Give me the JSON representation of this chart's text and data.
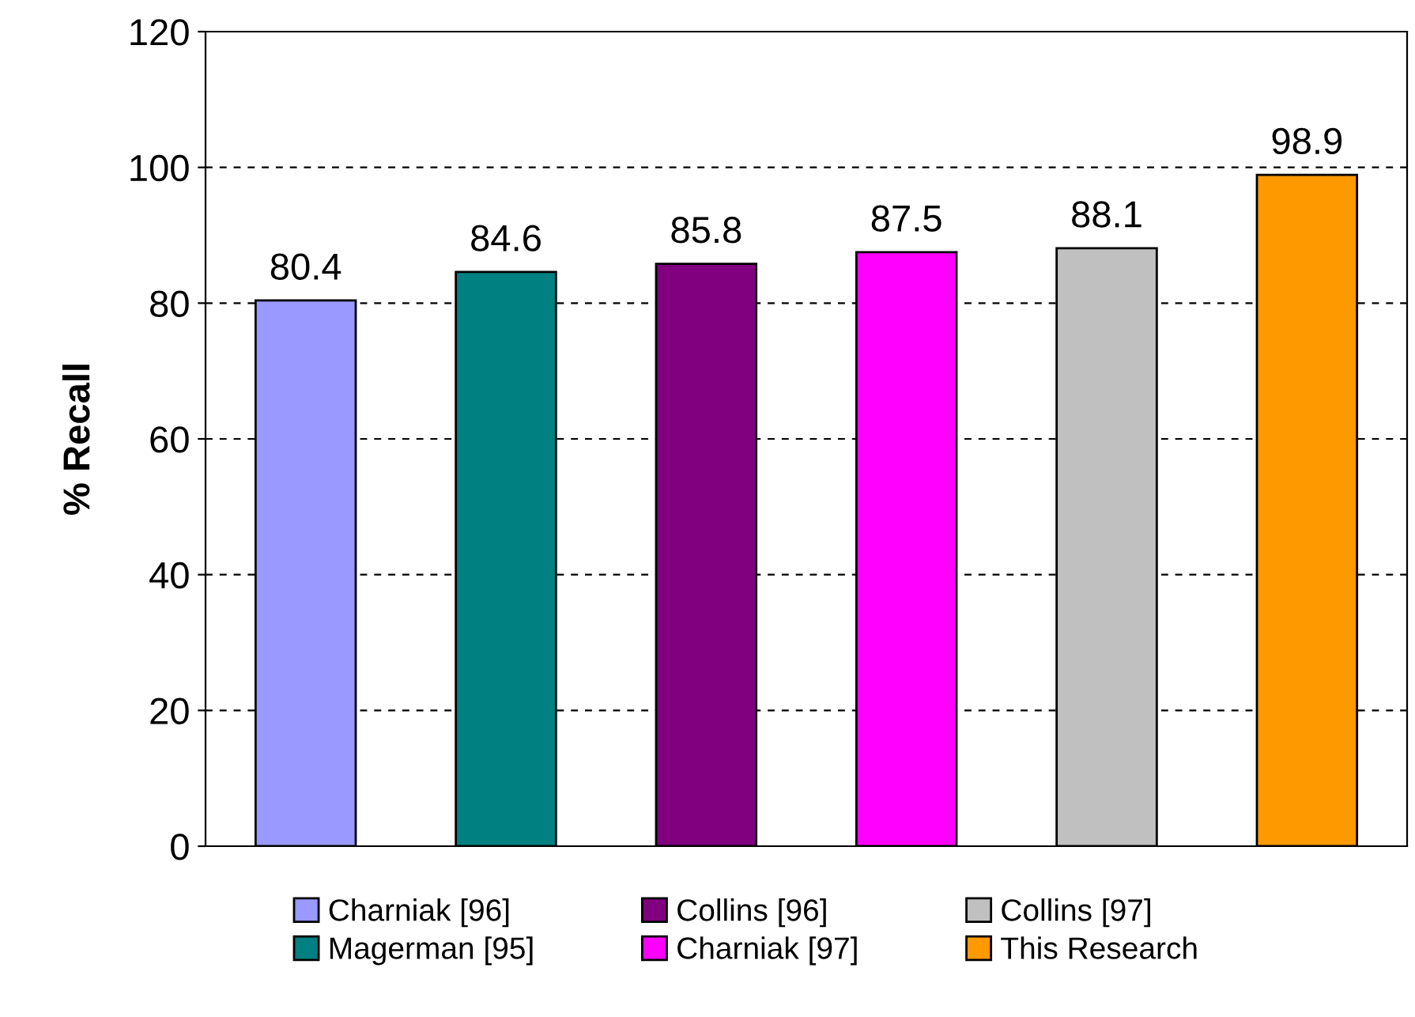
{
  "chart_data": {
    "type": "bar",
    "ylabel": "% Recall",
    "categories": [
      null,
      null,
      null,
      null,
      null,
      null
    ],
    "series": [
      {
        "name": "Charniak [96]",
        "color": "#9999ff",
        "values": [
          80.4,
          null,
          null,
          null,
          null,
          null
        ]
      },
      {
        "name": "Magerman [95]",
        "color": "#008080",
        "values": [
          null,
          84.6,
          null,
          null,
          null,
          null
        ]
      },
      {
        "name": "Collins [96]",
        "color": "#800080",
        "values": [
          null,
          null,
          85.8,
          null,
          null,
          null
        ]
      },
      {
        "name": "Charniak [97]",
        "color": "#ff00ff",
        "values": [
          null,
          null,
          null,
          87.5,
          null,
          null
        ]
      },
      {
        "name": "Collins [97]",
        "color": "#c0c0c0",
        "values": [
          null,
          null,
          null,
          null,
          88.1,
          null
        ]
      },
      {
        "name": "This Research",
        "color": "#ff9900",
        "values": [
          null,
          null,
          null,
          null,
          null,
          98.9
        ]
      }
    ],
    "ylim": [
      0,
      120
    ],
    "yticks": [
      0,
      20,
      40,
      60,
      80,
      100,
      120
    ],
    "grid": "y",
    "data_labels": true,
    "legend": "bottom"
  }
}
